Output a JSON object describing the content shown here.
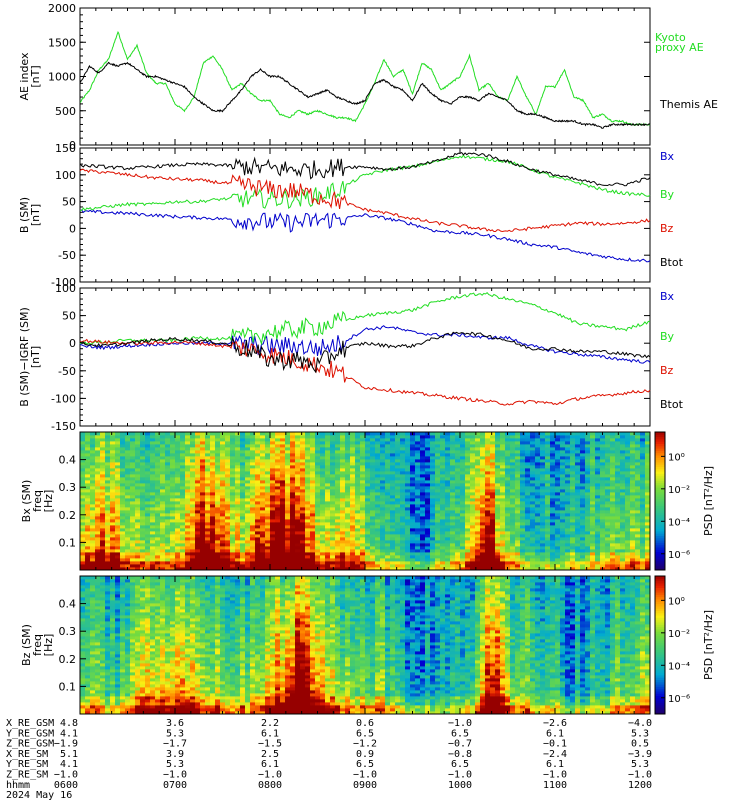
{
  "colors": {
    "black": "#000000",
    "green": "#22dd22",
    "blue": "#0000cc",
    "red": "#dd1100",
    "grey": "#888888"
  },
  "chart_data": [
    {
      "type": "line",
      "ylabel": [
        "AE index",
        "[nT]"
      ],
      "ylim": [
        0,
        2000
      ],
      "yticks": [
        "0",
        "500",
        "1000",
        "1500",
        "2000"
      ],
      "yticks_values": [
        0,
        500,
        1000,
        1500,
        2000
      ],
      "legend": [
        "Kyoto proxy AE",
        "Themis AE"
      ],
      "legend_lines": [
        [
          "Kyoto",
          "proxy AE"
        ],
        [
          "Themis AE"
        ]
      ],
      "x": [
        6.0,
        6.1,
        6.2,
        6.3,
        6.4,
        6.5,
        6.6,
        6.7,
        6.8,
        6.9,
        7.0,
        7.1,
        7.2,
        7.3,
        7.4,
        7.5,
        7.6,
        7.7,
        7.8,
        7.9,
        8.0,
        8.1,
        8.2,
        8.3,
        8.4,
        8.5,
        8.6,
        8.7,
        8.8,
        8.9,
        9.0,
        9.1,
        9.2,
        9.3,
        9.4,
        9.5,
        9.6,
        9.7,
        9.8,
        9.9,
        10.0,
        10.1,
        10.2,
        10.3,
        10.4,
        10.5,
        10.6,
        10.7,
        10.8,
        10.9,
        11.0,
        11.1,
        11.2,
        11.3,
        11.4,
        11.5,
        11.6,
        11.7,
        11.8,
        11.9,
        12.0
      ],
      "series": [
        {
          "name": "Kyoto proxy AE",
          "color": "green",
          "values": [
            620,
            800,
            1100,
            1250,
            1650,
            1250,
            1450,
            1050,
            900,
            900,
            600,
            500,
            700,
            1200,
            1300,
            1100,
            800,
            900,
            750,
            650,
            650,
            450,
            400,
            500,
            450,
            500,
            450,
            400,
            400,
            350,
            600,
            900,
            1250,
            1000,
            1100,
            750,
            1200,
            1100,
            800,
            900,
            1000,
            1300,
            800,
            900,
            700,
            650,
            1000,
            700,
            450,
            850,
            850,
            1100,
            700,
            650,
            400,
            450,
            350,
            350,
            300,
            300,
            300
          ]
        },
        {
          "name": "Themis AE",
          "color": "black",
          "values": [
            900,
            1150,
            1050,
            1200,
            1150,
            1200,
            1100,
            1000,
            1000,
            950,
            900,
            850,
            700,
            600,
            500,
            500,
            650,
            800,
            1000,
            1100,
            1000,
            1000,
            900,
            800,
            700,
            750,
            800,
            700,
            650,
            600,
            650,
            900,
            950,
            850,
            800,
            650,
            900,
            750,
            650,
            600,
            700,
            700,
            650,
            750,
            700,
            650,
            500,
            450,
            450,
            400,
            350,
            350,
            350,
            300,
            300,
            250,
            300,
            300,
            300,
            300,
            300
          ]
        }
      ]
    },
    {
      "type": "line",
      "ylabel": [
        "B (SM)",
        "[nT]"
      ],
      "ylim": [
        -100,
        150
      ],
      "yticks": [
        "-100",
        "-50",
        "0",
        "50",
        "100",
        "150"
      ],
      "yticks_values": [
        -100,
        -50,
        0,
        50,
        100,
        150
      ],
      "legend": [
        "Bx",
        "By",
        "Bz",
        "Btot"
      ],
      "x": [
        6.0,
        6.25,
        6.5,
        6.75,
        7.0,
        7.25,
        7.5,
        7.75,
        8.0,
        8.25,
        8.5,
        8.75,
        9.0,
        9.25,
        9.5,
        9.75,
        10.0,
        10.25,
        10.5,
        10.75,
        11.0,
        11.25,
        11.5,
        11.75,
        12.0
      ],
      "series": [
        {
          "name": "Bx",
          "color": "blue",
          "values": [
            32,
            30,
            28,
            25,
            22,
            20,
            18,
            15,
            12,
            10,
            15,
            18,
            25,
            18,
            8,
            -5,
            -8,
            -12,
            -20,
            -30,
            -35,
            -45,
            -52,
            -58,
            -60
          ]
        },
        {
          "name": "By",
          "color": "green",
          "values": [
            35,
            40,
            45,
            45,
            50,
            50,
            55,
            55,
            55,
            55,
            60,
            75,
            100,
            110,
            115,
            125,
            135,
            130,
            125,
            110,
            95,
            85,
            72,
            65,
            62
          ]
        },
        {
          "name": "Bz",
          "color": "red",
          "values": [
            108,
            105,
            100,
            95,
            92,
            90,
            85,
            80,
            72,
            70,
            60,
            50,
            35,
            28,
            18,
            10,
            5,
            -2,
            -5,
            0,
            5,
            10,
            8,
            10,
            15
          ]
        },
        {
          "name": "Btot",
          "color": "black",
          "values": [
            118,
            115,
            112,
            115,
            118,
            120,
            118,
            115,
            112,
            110,
            110,
            115,
            115,
            110,
            115,
            125,
            140,
            138,
            125,
            110,
            100,
            90,
            82,
            82,
            95
          ]
        }
      ]
    },
    {
      "type": "line",
      "ylabel": [
        "B (SM)−IGRF (SM)",
        "[nT]"
      ],
      "ylim": [
        -150,
        100
      ],
      "yticks": [
        "-150",
        "-100",
        "-50",
        "0",
        "50",
        "100"
      ],
      "yticks_values": [
        -150,
        -100,
        -50,
        0,
        50,
        100
      ],
      "legend": [
        "Bx",
        "By",
        "Bz",
        "Btot"
      ],
      "x": [
        6.0,
        6.25,
        6.5,
        6.75,
        7.0,
        7.25,
        7.5,
        7.75,
        8.0,
        8.25,
        8.5,
        8.75,
        9.0,
        9.25,
        9.5,
        9.75,
        10.0,
        10.25,
        10.5,
        10.75,
        11.0,
        11.25,
        11.5,
        11.75,
        12.0
      ],
      "series": [
        {
          "name": "Bx",
          "color": "blue",
          "values": [
            -5,
            -8,
            -5,
            -2,
            0,
            0,
            0,
            -2,
            -5,
            -5,
            -10,
            0,
            25,
            30,
            20,
            15,
            15,
            10,
            10,
            -5,
            -15,
            -20,
            -25,
            -30,
            -35
          ]
        },
        {
          "name": "By",
          "color": "green",
          "values": [
            0,
            2,
            5,
            5,
            5,
            10,
            8,
            10,
            20,
            25,
            30,
            40,
            50,
            55,
            60,
            75,
            85,
            90,
            80,
            70,
            55,
            35,
            30,
            25,
            40
          ]
        },
        {
          "name": "Bz",
          "color": "red",
          "values": [
            5,
            2,
            0,
            0,
            2,
            0,
            -5,
            -10,
            -20,
            -30,
            -40,
            -55,
            -80,
            -85,
            -90,
            -95,
            -100,
            -105,
            -110,
            -105,
            -110,
            -100,
            -95,
            -90,
            -85
          ]
        },
        {
          "name": "Btot",
          "color": "black",
          "values": [
            0,
            -5,
            0,
            5,
            8,
            5,
            0,
            -10,
            -30,
            -30,
            -40,
            -10,
            0,
            -5,
            -5,
            10,
            20,
            15,
            5,
            -10,
            -10,
            -15,
            -15,
            -20,
            -25
          ]
        }
      ]
    },
    {
      "type": "heatmap",
      "ylabel": [
        "Bx (SM)",
        "freq",
        "[Hz]"
      ],
      "yticks": [
        "0.1",
        "0.2",
        "0.3",
        "0.4"
      ],
      "yticks_values": [
        0.1,
        0.2,
        0.3,
        0.4
      ],
      "ylim": [
        0,
        0.5
      ],
      "cbar_label": "PSD [nT²/Hz]",
      "cbar_ticks": [
        "10⁰",
        "10⁻²",
        "10⁻⁴",
        "10⁻⁶"
      ],
      "cbar_ticks_values": [
        0,
        -2,
        -4,
        -6
      ],
      "cbar_range": [
        -7,
        1.5
      ]
    },
    {
      "type": "heatmap",
      "ylabel": [
        "Bz (SM)",
        "freq",
        "[Hz]"
      ],
      "yticks": [
        "0.1",
        "0.2",
        "0.3",
        "0.4"
      ],
      "yticks_values": [
        0.1,
        0.2,
        0.3,
        0.4
      ],
      "ylim": [
        0,
        0.5
      ],
      "cbar_label": "PSD [nT²/Hz]",
      "cbar_ticks": [
        "10⁰",
        "10⁻²",
        "10⁻⁴",
        "10⁻⁶"
      ],
      "cbar_ticks_values": [
        0,
        -2,
        -4,
        -6
      ],
      "cbar_range": [
        -7,
        1.5
      ]
    }
  ],
  "ephemeris": {
    "labels": [
      "X_RE_GSM",
      "Y_RE_GSM",
      "Z_RE_GSM",
      "X_RE_SM",
      "Y_RE_SM",
      "Z_RE_SM",
      "hhmm"
    ],
    "rows": [
      [
        "4.8",
        "3.6",
        "2.2",
        "0.6",
        "−1.0",
        "−2.6",
        "−4.0"
      ],
      [
        "4.1",
        "5.3",
        "6.1",
        "6.5",
        "6.5",
        "6.1",
        "5.3"
      ],
      [
        "−1.9",
        "−1.7",
        "−1.5",
        "−1.2",
        "−0.7",
        "−0.1",
        "0.5"
      ],
      [
        "5.1",
        "3.9",
        "2.5",
        "0.9",
        "−0.8",
        "−2.4",
        "−3.9"
      ],
      [
        "4.1",
        "5.3",
        "6.1",
        "6.5",
        "6.5",
        "6.1",
        "5.3"
      ],
      [
        "−1.0",
        "−1.0",
        "−1.0",
        "−1.0",
        "−1.0",
        "−1.0",
        "−1.0"
      ],
      [
        "0600",
        "0700",
        "0800",
        "0900",
        "1000",
        "1100",
        "1200"
      ]
    ],
    "date": "2024 May 16"
  }
}
